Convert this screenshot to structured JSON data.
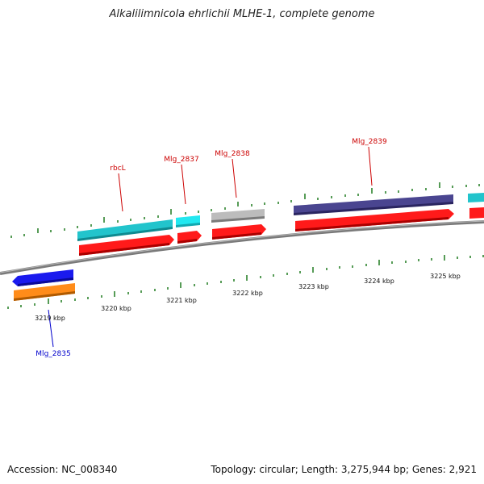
{
  "title": "Alkalilimnicola ehrlichii MLHE-1, complete genome",
  "footer": {
    "accession": "Accession: NC_008340",
    "topology": "Topology: circular; Length: 3,275,944 bp; Genes: 2,921"
  },
  "ruler": {
    "labels": [
      "3219 kbp",
      "3220 kbp",
      "3221 kbp",
      "3222 kbp",
      "3223 kbp",
      "3224 kbp",
      "3225 kbp"
    ]
  },
  "gene_labels": [
    {
      "name": "rbcL",
      "color": "#cc0000"
    },
    {
      "name": "Mlg_2837",
      "color": "#cc0000"
    },
    {
      "name": "Mlg_2838",
      "color": "#cc0000"
    },
    {
      "name": "Mlg_2839",
      "color": "#cc0000"
    },
    {
      "name": "Mlg_2835",
      "color": "#0000cc"
    }
  ],
  "colors": {
    "cds_forward": "#ff1a1a",
    "gene_teal": "#22c4cc",
    "gene_cyan": "#22e8f0",
    "gene_gray": "#bcbcbc",
    "gene_purple": "#4a4590",
    "gene_blue": "#1a1aee",
    "gene_orange": "#ff8c1a",
    "tick_green": "#1f7a1f",
    "backbone": "#808080"
  }
}
